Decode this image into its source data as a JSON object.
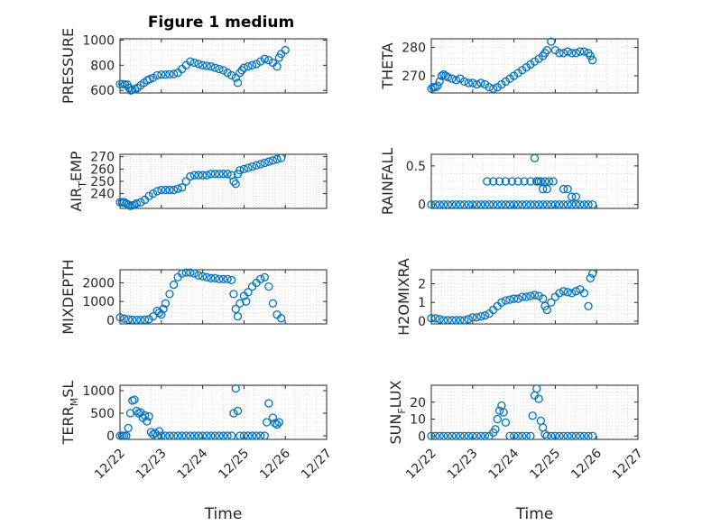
{
  "figure": {
    "title": "Figure 1 medium",
    "marker_color": "#0072BD",
    "background": "#ffffff"
  },
  "chart_data": [
    {
      "type": "scatter",
      "id": "pressure",
      "ylabel": "PRESSURE",
      "ylim": [
        580,
        1010
      ],
      "yticks": [
        600,
        800,
        1000
      ],
      "ytick_labels": [
        "600",
        "800",
        "1000"
      ],
      "xlim": [
        0,
        5
      ],
      "xticks": [
        0,
        1,
        2,
        3,
        4,
        5
      ],
      "xtick_labels": [],
      "xlabel": "",
      "title": "Figure 1 medium",
      "grid": true,
      "minor_grid": true,
      "x": [
        0.0,
        0.06,
        0.12,
        0.18,
        0.22,
        0.26,
        0.3,
        0.36,
        0.42,
        0.5,
        0.58,
        0.66,
        0.72,
        0.8,
        0.9,
        1.0,
        1.1,
        1.2,
        1.3,
        1.4,
        1.5,
        1.6,
        1.7,
        1.8,
        1.9,
        2.0,
        2.1,
        2.2,
        2.3,
        2.4,
        2.5,
        2.6,
        2.7,
        2.8,
        2.85,
        2.9,
        2.95,
        3.0,
        3.1,
        3.2,
        3.3,
        3.4,
        3.5,
        3.6,
        3.7,
        3.8,
        3.85,
        3.9,
        4.0
      ],
      "y": [
        650,
        650,
        648,
        645,
        620,
        600,
        605,
        610,
        620,
        640,
        660,
        680,
        690,
        700,
        720,
        725,
        725,
        728,
        730,
        740,
        770,
        800,
        830,
        820,
        810,
        800,
        795,
        790,
        780,
        770,
        760,
        740,
        720,
        700,
        660,
        740,
        760,
        780,
        790,
        800,
        810,
        830,
        850,
        840,
        820,
        790,
        860,
        890,
        920
      ]
    },
    {
      "type": "scatter",
      "id": "theta",
      "ylabel": "THETA",
      "ylim": [
        264,
        283
      ],
      "yticks": [
        270,
        280
      ],
      "ytick_labels": [
        "270",
        "280"
      ],
      "xlim": [
        0,
        5
      ],
      "xticks": [
        0,
        1,
        2,
        3,
        4,
        5
      ],
      "xtick_labels": [],
      "xlabel": "",
      "grid": true,
      "minor_grid": true,
      "x": [
        0.0,
        0.05,
        0.1,
        0.15,
        0.2,
        0.25,
        0.3,
        0.35,
        0.4,
        0.5,
        0.6,
        0.7,
        0.8,
        0.9,
        1.0,
        1.1,
        1.2,
        1.3,
        1.4,
        1.5,
        1.6,
        1.7,
        1.8,
        1.9,
        2.0,
        2.1,
        2.2,
        2.3,
        2.4,
        2.5,
        2.6,
        2.7,
        2.75,
        2.8,
        2.9,
        3.0,
        3.1,
        3.2,
        3.3,
        3.4,
        3.5,
        3.6,
        3.7,
        3.8,
        3.85,
        3.9
      ],
      "y": [
        265.5,
        266,
        266,
        266.5,
        268,
        270,
        270.5,
        270,
        269.5,
        269,
        268.5,
        269,
        268,
        267.5,
        267.5,
        267,
        267.5,
        267,
        266,
        265.5,
        266,
        267,
        268,
        269,
        270,
        271,
        272,
        273,
        274,
        275,
        276,
        277,
        278,
        279,
        282,
        279,
        278,
        278,
        278.5,
        278,
        278,
        278.5,
        278.5,
        278,
        277,
        275.5
      ]
    },
    {
      "type": "scatter",
      "id": "air_temp",
      "ylabel": "AIR_TEMP",
      "ylim": [
        228,
        272
      ],
      "yticks": [
        240,
        250,
        260,
        270
      ],
      "ytick_labels": [
        "240",
        "250",
        "260",
        "270"
      ],
      "xlim": [
        0,
        5
      ],
      "xticks": [
        0,
        1,
        2,
        3,
        4,
        5
      ],
      "xtick_labels": [],
      "xlabel": "",
      "grid": true,
      "minor_grid": true,
      "x": [
        0.0,
        0.05,
        0.1,
        0.15,
        0.2,
        0.25,
        0.3,
        0.35,
        0.4,
        0.5,
        0.6,
        0.7,
        0.8,
        0.9,
        1.0,
        1.1,
        1.2,
        1.3,
        1.4,
        1.5,
        1.6,
        1.7,
        1.8,
        1.9,
        2.0,
        2.1,
        2.2,
        2.3,
        2.4,
        2.5,
        2.6,
        2.7,
        2.75,
        2.8,
        2.85,
        2.9,
        3.0,
        3.1,
        3.2,
        3.3,
        3.4,
        3.5,
        3.6,
        3.7,
        3.8,
        3.9
      ],
      "y": [
        233,
        233,
        233,
        232,
        231,
        230,
        230.5,
        231,
        232,
        233,
        235,
        238,
        240,
        242,
        243,
        243,
        243,
        243,
        244,
        245,
        250,
        254,
        255,
        255,
        255,
        255,
        256,
        256,
        256,
        256,
        256,
        255,
        250,
        248,
        256,
        259,
        260,
        261,
        262,
        263,
        264,
        265,
        266,
        267,
        268,
        269
      ]
    },
    {
      "type": "scatter",
      "id": "rainfall",
      "ylabel": "RAINFALL",
      "ylim": [
        -0.05,
        0.65
      ],
      "yticks": [
        0,
        0.5
      ],
      "ytick_labels": [
        "0",
        "0.5"
      ],
      "xlim": [
        0,
        5
      ],
      "xticks": [
        0,
        1,
        2,
        3,
        4,
        5
      ],
      "xtick_labels": [],
      "xlabel": "",
      "grid": true,
      "minor_grid": true,
      "x": [
        0.0,
        0.1,
        0.2,
        0.3,
        0.4,
        0.5,
        0.6,
        0.7,
        0.8,
        0.9,
        1.0,
        1.1,
        1.2,
        1.3,
        1.4,
        1.5,
        1.6,
        1.7,
        1.8,
        1.9,
        2.0,
        2.1,
        2.2,
        2.3,
        2.4,
        2.5,
        2.6,
        2.7,
        2.8,
        2.9,
        3.0,
        3.1,
        3.2,
        3.3,
        3.4,
        3.5,
        3.6,
        3.7,
        3.8,
        3.9,
        1.35,
        1.5,
        1.65,
        1.8,
        1.95,
        2.1,
        2.25,
        2.4,
        2.55,
        2.65,
        2.75,
        2.85,
        2.95,
        2.5,
        2.55,
        2.6,
        2.7,
        2.8,
        3.2,
        3.3,
        3.4,
        3.5
      ],
      "y": [
        0,
        0,
        0,
        0,
        0,
        0,
        0,
        0,
        0,
        0,
        0,
        0,
        0,
        0,
        0,
        0,
        0,
        0,
        0,
        0,
        0,
        0,
        0,
        0,
        0,
        0,
        0,
        0,
        0,
        0,
        0,
        0,
        0,
        0,
        0,
        0,
        0,
        0,
        0,
        0,
        0.3,
        0.3,
        0.3,
        0.3,
        0.3,
        0.3,
        0.3,
        0.3,
        0.3,
        0.3,
        0.3,
        0.3,
        0.3,
        0.6,
        0.3,
        0.3,
        0.2,
        0.2,
        0.2,
        0.2,
        0.1,
        0.1
      ]
    },
    {
      "type": "scatter",
      "id": "mixdepth",
      "ylabel": "MIXDEPTH",
      "ylim": [
        -200,
        2700
      ],
      "yticks": [
        0,
        1000,
        2000
      ],
      "ytick_labels": [
        "0",
        "1000",
        "2000"
      ],
      "xlim": [
        0,
        5
      ],
      "xticks": [
        0,
        1,
        2,
        3,
        4,
        5
      ],
      "xtick_labels": [],
      "xlabel": "",
      "grid": true,
      "minor_grid": true,
      "x": [
        0.0,
        0.1,
        0.2,
        0.3,
        0.4,
        0.5,
        0.6,
        0.7,
        0.8,
        0.9,
        0.95,
        1.0,
        1.05,
        1.1,
        1.2,
        1.3,
        1.4,
        1.5,
        1.6,
        1.7,
        1.8,
        1.9,
        2.0,
        2.1,
        2.2,
        2.3,
        2.4,
        2.5,
        2.6,
        2.7,
        2.75,
        2.8,
        2.85,
        2.9,
        3.0,
        3.05,
        3.1,
        3.2,
        3.3,
        3.4,
        3.5,
        3.6,
        3.7,
        3.8,
        3.9
      ],
      "y": [
        150,
        80,
        40,
        20,
        10,
        10,
        20,
        50,
        200,
        500,
        400,
        300,
        600,
        900,
        1400,
        1900,
        2300,
        2500,
        2550,
        2550,
        2500,
        2400,
        2350,
        2300,
        2250,
        2250,
        2200,
        2200,
        2200,
        2150,
        1400,
        600,
        200,
        900,
        1300,
        1000,
        1500,
        1800,
        2000,
        2200,
        2300,
        1800,
        900,
        300,
        100
      ]
    },
    {
      "type": "scatter",
      "id": "h2omixra",
      "ylabel": "H2OMIXRA",
      "ylim": [
        -0.15,
        2.75
      ],
      "yticks": [
        0,
        1,
        2
      ],
      "ytick_labels": [
        "0",
        "1",
        "2"
      ],
      "xlim": [
        0,
        5
      ],
      "xticks": [
        0,
        1,
        2,
        3,
        4,
        5
      ],
      "xtick_labels": [],
      "xlabel": "",
      "grid": true,
      "minor_grid": true,
      "x": [
        0.0,
        0.1,
        0.2,
        0.3,
        0.4,
        0.5,
        0.6,
        0.7,
        0.8,
        0.9,
        1.0,
        1.1,
        1.2,
        1.3,
        1.4,
        1.5,
        1.6,
        1.7,
        1.8,
        1.9,
        2.0,
        2.1,
        2.2,
        2.3,
        2.4,
        2.5,
        2.6,
        2.7,
        2.75,
        2.8,
        2.9,
        3.0,
        3.1,
        3.2,
        3.3,
        3.4,
        3.5,
        3.6,
        3.7,
        3.8,
        3.85,
        3.9
      ],
      "y": [
        0.15,
        0.15,
        0.1,
        0.05,
        0.05,
        0.05,
        0.05,
        0.05,
        0.05,
        0.1,
        0.2,
        0.2,
        0.25,
        0.3,
        0.4,
        0.6,
        0.8,
        1.0,
        1.1,
        1.15,
        1.2,
        1.2,
        1.3,
        1.3,
        1.35,
        1.4,
        1.35,
        1.2,
        0.8,
        0.6,
        1.0,
        1.3,
        1.5,
        1.6,
        1.55,
        1.5,
        1.6,
        1.7,
        1.5,
        0.8,
        2.3,
        2.55
      ]
    },
    {
      "type": "scatter",
      "id": "terr_msl",
      "ylabel": "TERR_MSL",
      "ylim": [
        -80,
        1120
      ],
      "yticks": [
        0,
        500,
        1000
      ],
      "ytick_labels": [
        "0",
        "500",
        "1000"
      ],
      "xlim": [
        0,
        5
      ],
      "xticks": [
        0,
        1,
        2,
        3,
        4,
        5
      ],
      "xtick_labels": [
        "12/22",
        "12/23",
        "12/24",
        "12/25",
        "12/26",
        "12/27"
      ],
      "xlabel": "Time",
      "grid": true,
      "minor_grid": true,
      "x": [
        0.0,
        0.05,
        0.1,
        0.15,
        0.2,
        0.25,
        0.3,
        0.35,
        0.4,
        0.45,
        0.5,
        0.55,
        0.6,
        0.65,
        0.7,
        0.75,
        0.8,
        0.85,
        0.9,
        0.95,
        1.0,
        1.1,
        1.2,
        1.3,
        1.4,
        1.5,
        1.6,
        1.7,
        1.8,
        1.9,
        2.0,
        2.1,
        2.2,
        2.3,
        2.4,
        2.5,
        2.6,
        2.7,
        2.75,
        2.8,
        2.85,
        2.9,
        3.0,
        3.1,
        3.2,
        3.3,
        3.4,
        3.5,
        3.55,
        3.6,
        3.7,
        3.75,
        3.8,
        3.85
      ],
      "y": [
        0,
        0,
        0,
        0,
        170,
        500,
        780,
        800,
        550,
        500,
        520,
        400,
        450,
        320,
        430,
        80,
        30,
        60,
        0,
        100,
        0,
        0,
        0,
        0,
        0,
        0,
        0,
        0,
        0,
        0,
        0,
        0,
        0,
        0,
        0,
        0,
        0,
        0,
        500,
        1050,
        550,
        0,
        0,
        0,
        0,
        0,
        0,
        0,
        300,
        720,
        400,
        280,
        250,
        300
      ]
    },
    {
      "type": "scatter",
      "id": "sun_flux",
      "ylabel": "SUN_FLUX",
      "ylim": [
        -2,
        30
      ],
      "yticks": [
        0,
        10,
        20
      ],
      "ytick_labels": [
        "0",
        "10",
        "20"
      ],
      "xlim": [
        0,
        5
      ],
      "xticks": [
        0,
        1,
        2,
        3,
        4,
        5
      ],
      "xtick_labels": [
        "12/22",
        "12/23",
        "12/24",
        "12/25",
        "12/26",
        "12/27"
      ],
      "xlabel": "Time",
      "grid": true,
      "minor_grid": true,
      "x": [
        0.0,
        0.1,
        0.2,
        0.3,
        0.4,
        0.5,
        0.6,
        0.7,
        0.8,
        0.9,
        1.0,
        1.1,
        1.2,
        1.3,
        1.4,
        1.5,
        1.55,
        1.6,
        1.65,
        1.7,
        1.75,
        1.8,
        1.9,
        2.0,
        2.1,
        2.2,
        2.3,
        2.4,
        2.45,
        2.5,
        2.55,
        2.6,
        2.65,
        2.7,
        2.75,
        2.8,
        2.9,
        3.0,
        3.1,
        3.2,
        3.3,
        3.4,
        3.5,
        3.6,
        3.7,
        3.8,
        3.9
      ],
      "y": [
        0,
        0,
        0,
        0,
        0,
        0,
        0,
        0,
        0,
        0,
        0,
        0,
        0,
        0,
        0,
        2,
        4,
        10,
        15,
        18,
        14,
        8,
        0,
        0,
        0,
        0,
        0,
        0,
        12,
        24,
        28,
        22,
        9,
        5,
        1,
        0,
        0,
        0,
        0,
        0,
        0,
        0,
        0,
        0,
        0,
        0,
        0
      ]
    }
  ]
}
